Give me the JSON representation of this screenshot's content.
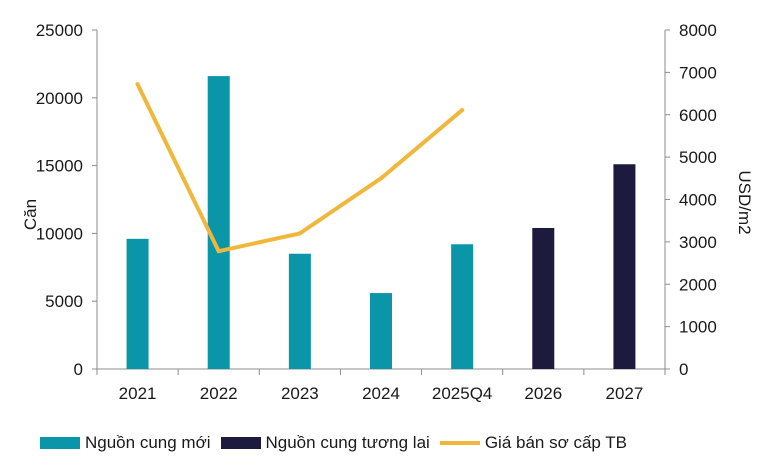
{
  "chart_data": {
    "type": "bar",
    "categories": [
      "2021",
      "2022",
      "2023",
      "2024",
      "2025Q4",
      "2026",
      "2027"
    ],
    "series": [
      {
        "name": "Nguồn cung mới",
        "type": "bar",
        "axis": "left",
        "color": "#0b95a9",
        "values": [
          9600,
          21600,
          8500,
          5600,
          9200,
          null,
          null
        ]
      },
      {
        "name": "Nguồn cung tương lai",
        "type": "bar",
        "axis": "left",
        "color": "#1c1a3d",
        "values": [
          null,
          null,
          null,
          null,
          null,
          10400,
          15100
        ]
      },
      {
        "name": "Giá bán sơ cấp  TB",
        "type": "line",
        "axis": "right",
        "color": "#f0b73b",
        "values": [
          6720,
          2780,
          3200,
          4500,
          6110,
          null,
          null
        ]
      }
    ],
    "y_left": {
      "label": "Căn",
      "ylim": [
        0,
        25000
      ],
      "ticks": [
        "0",
        "5000",
        "10000",
        "15000",
        "20000",
        "25000"
      ]
    },
    "y_right": {
      "label": "USD/m2",
      "ylim": [
        0,
        8000
      ],
      "ticks": [
        "0",
        "1000",
        "2000",
        "3000",
        "4000",
        "5000",
        "6000",
        "7000",
        "8000"
      ]
    },
    "grid": false,
    "legend_position": "bottom"
  }
}
